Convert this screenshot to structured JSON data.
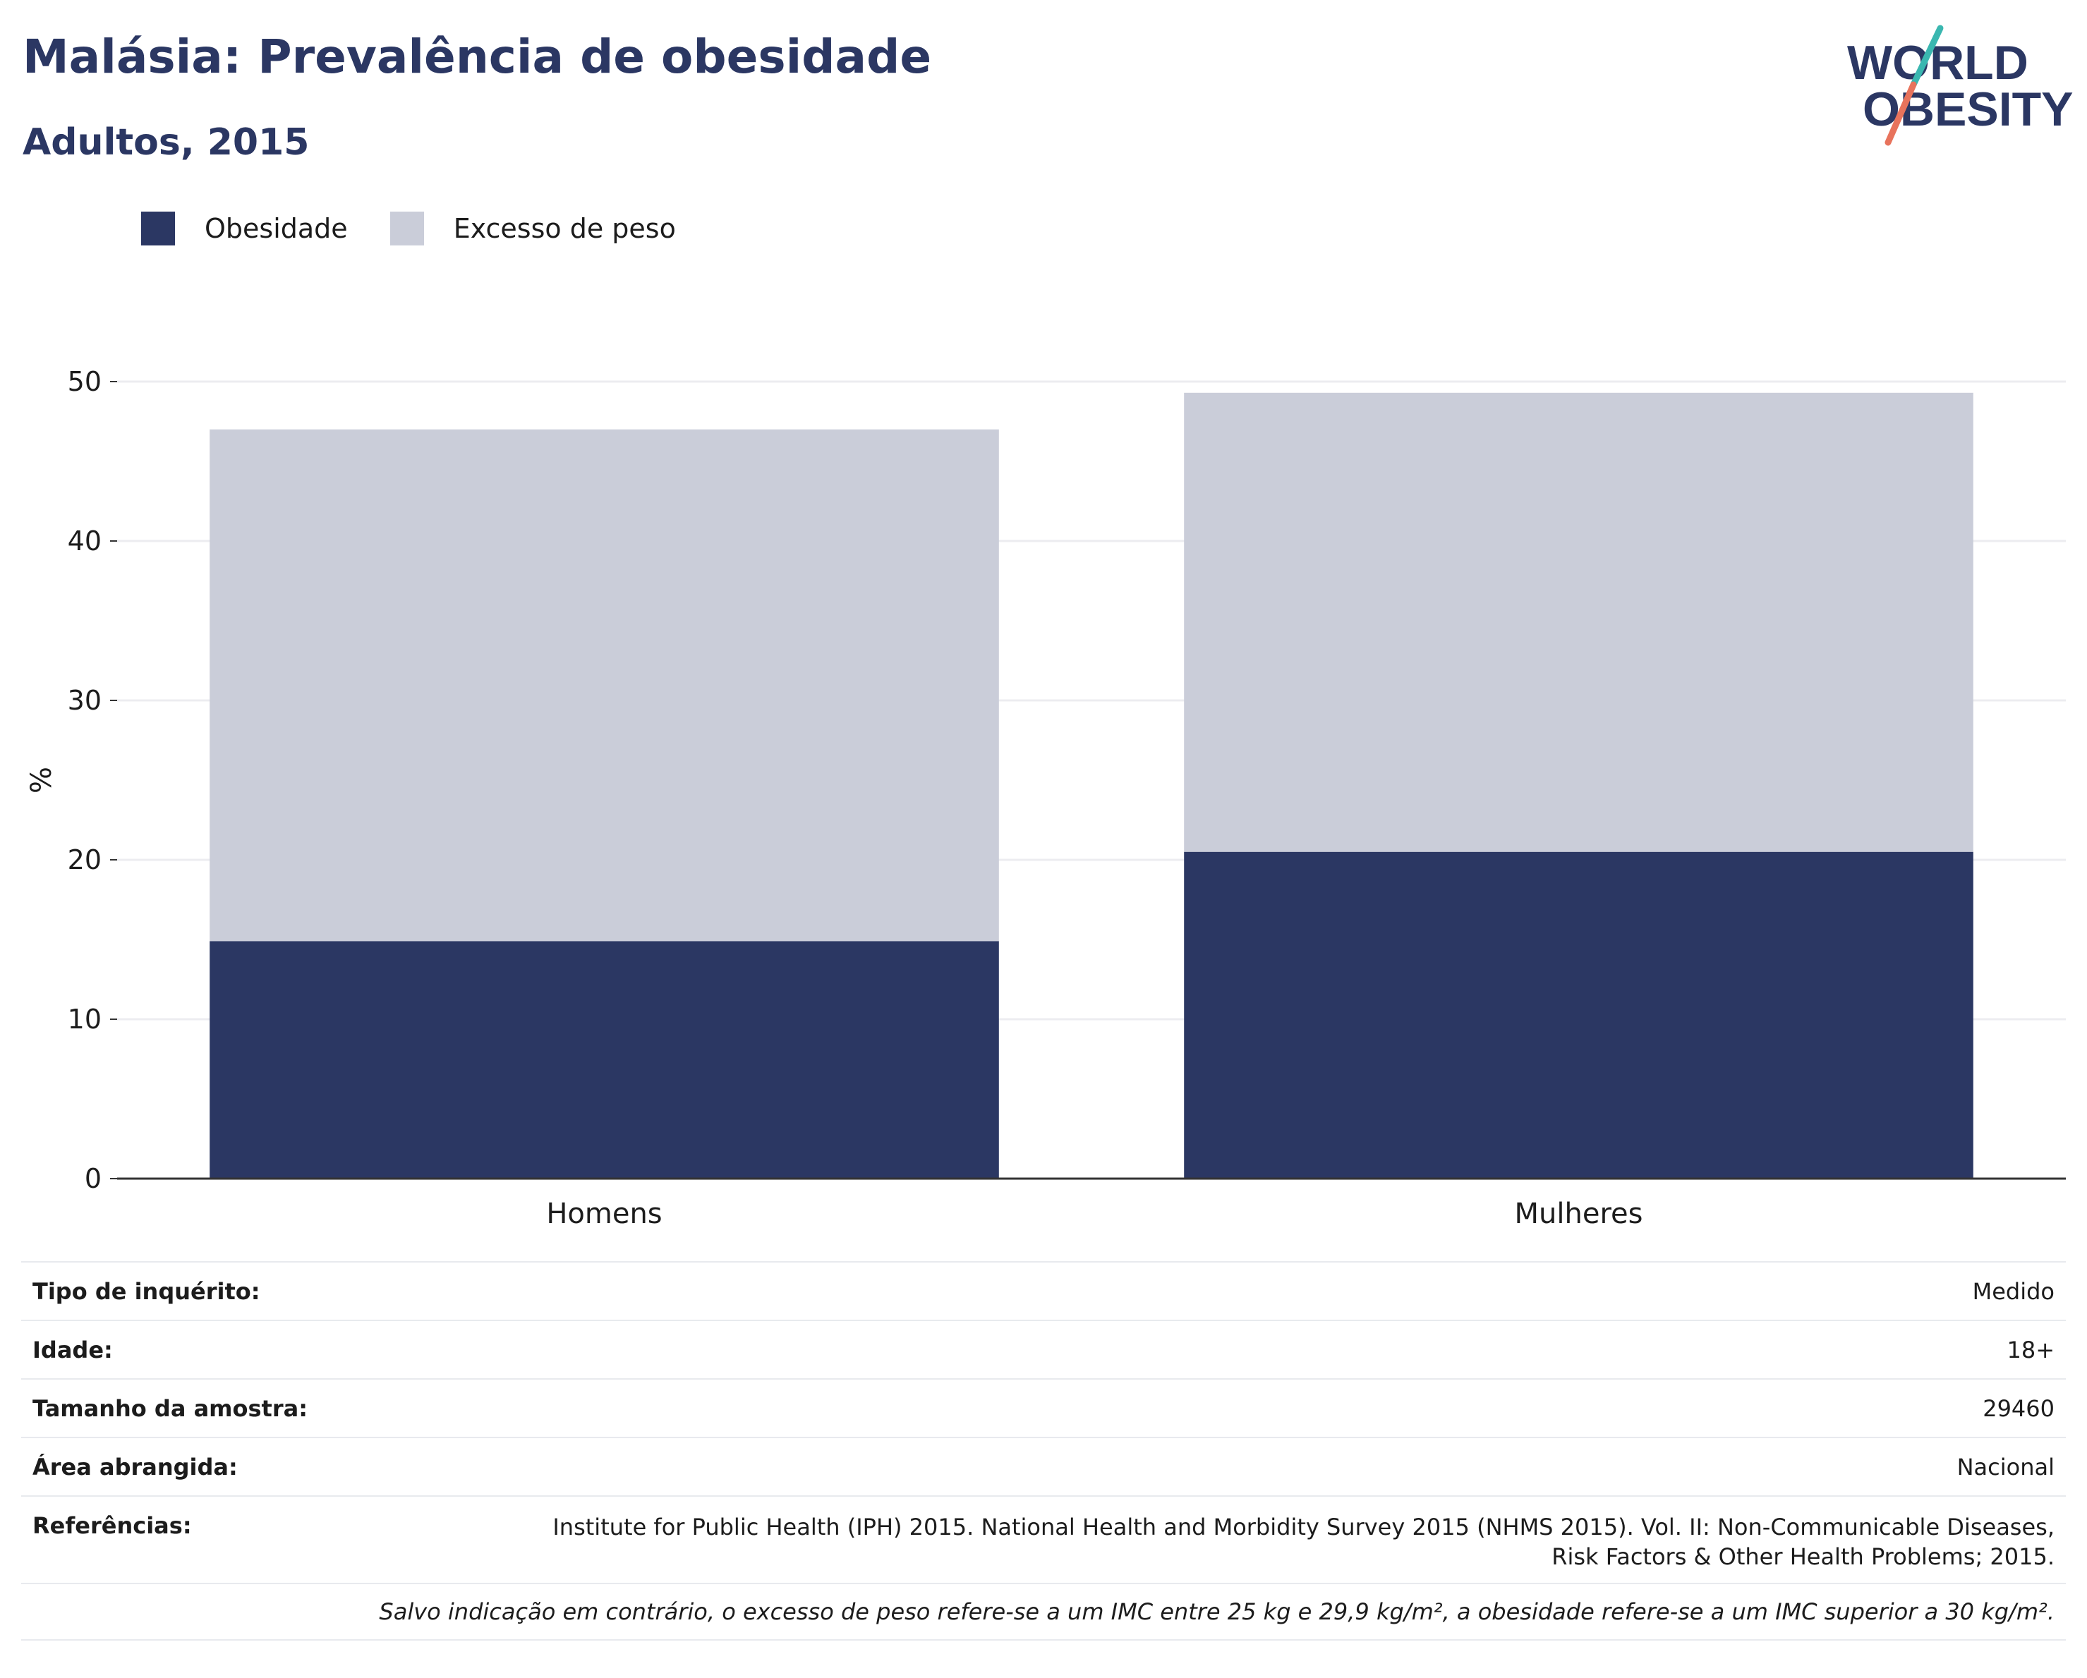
{
  "header": {
    "title": "Malásia: Prevalência de obesidade",
    "subtitle": "Adultos, 2015"
  },
  "logo": {
    "line1": "WORLD",
    "line2": "OBESITY",
    "colors": {
      "text": "#2b3763",
      "slash_top": "#3ab7b0",
      "slash_bottom": "#e8735c"
    }
  },
  "colors": {
    "obesity": "#2b3763",
    "overweight": "#cacdd9",
    "grid": "#ececf0",
    "axis": "#333333"
  },
  "chart_data": {
    "type": "bar",
    "stacked": true,
    "categories": [
      "Homens",
      "Mulheres"
    ],
    "series": [
      {
        "name": "Obesidade",
        "values": [
          14.9,
          20.5
        ]
      },
      {
        "name": "Excesso de peso",
        "values": [
          32.1,
          28.8
        ]
      }
    ],
    "ylabel": "%",
    "ylim": [
      0,
      50
    ],
    "yticks": [
      0,
      10,
      20,
      30,
      40,
      50
    ],
    "grid": true,
    "legend": "top-left"
  },
  "info": {
    "rows": [
      {
        "label": "Tipo de inquérito:",
        "value": "Medido"
      },
      {
        "label": "Idade:",
        "value": "18+"
      },
      {
        "label": "Tamanho da amostra:",
        "value": "29460"
      },
      {
        "label": "Área abrangida:",
        "value": "Nacional"
      }
    ],
    "references_label": "Referências:",
    "references_line1": "Institute for Public Health (IPH) 2015. National Health and Morbidity Survey 2015 (NHMS 2015). Vol. II: Non-Communicable Diseases,",
    "references_line2": "Risk Factors & Other Health Problems; 2015.",
    "footnote": "Salvo indicação em contrário, o excesso de peso refere-se a um IMC entre 25 kg e 29,9 kg/m², a obesidade refere-se a um IMC superior a 30 kg/m²."
  }
}
